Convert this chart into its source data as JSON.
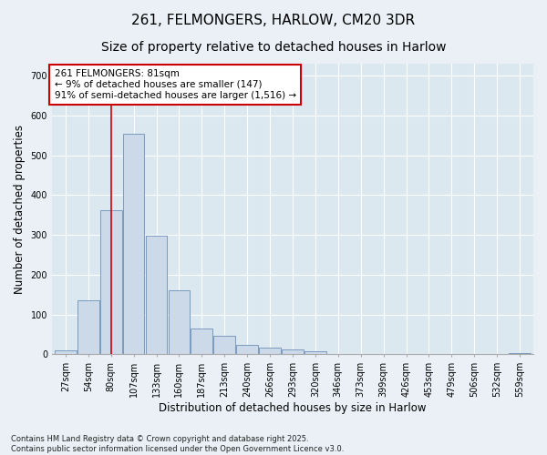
{
  "title1": "261, FELMONGERS, HARLOW, CM20 3DR",
  "title2": "Size of property relative to detached houses in Harlow",
  "xlabel": "Distribution of detached houses by size in Harlow",
  "ylabel": "Number of detached properties",
  "categories": [
    "27sqm",
    "54sqm",
    "80sqm",
    "107sqm",
    "133sqm",
    "160sqm",
    "187sqm",
    "213sqm",
    "240sqm",
    "266sqm",
    "293sqm",
    "320sqm",
    "346sqm",
    "373sqm",
    "399sqm",
    "426sqm",
    "453sqm",
    "479sqm",
    "506sqm",
    "532sqm",
    "559sqm"
  ],
  "values": [
    10,
    135,
    363,
    554,
    297,
    160,
    65,
    47,
    23,
    16,
    13,
    8,
    2,
    0,
    0,
    0,
    0,
    0,
    0,
    0,
    3
  ],
  "bar_color": "#ccd9e8",
  "bar_edge_color": "#7a9bbf",
  "vline_x_index": 2,
  "vline_color": "#cc0000",
  "annotation_text": "261 FELMONGERS: 81sqm\n← 9% of detached houses are smaller (147)\n91% of semi-detached houses are larger (1,516) →",
  "annotation_box_color": "#cc0000",
  "background_color": "#dce8f0",
  "fig_background_color": "#eaf0f6",
  "ylim": [
    0,
    730
  ],
  "yticks": [
    0,
    100,
    200,
    300,
    400,
    500,
    600,
    700
  ],
  "footer_text": "Contains HM Land Registry data © Crown copyright and database right 2025.\nContains public sector information licensed under the Open Government Licence v3.0.",
  "title1_fontsize": 11,
  "title2_fontsize": 10,
  "axis_label_fontsize": 8.5,
  "tick_fontsize": 7,
  "annotation_fontsize": 7.5,
  "footer_fontsize": 6
}
